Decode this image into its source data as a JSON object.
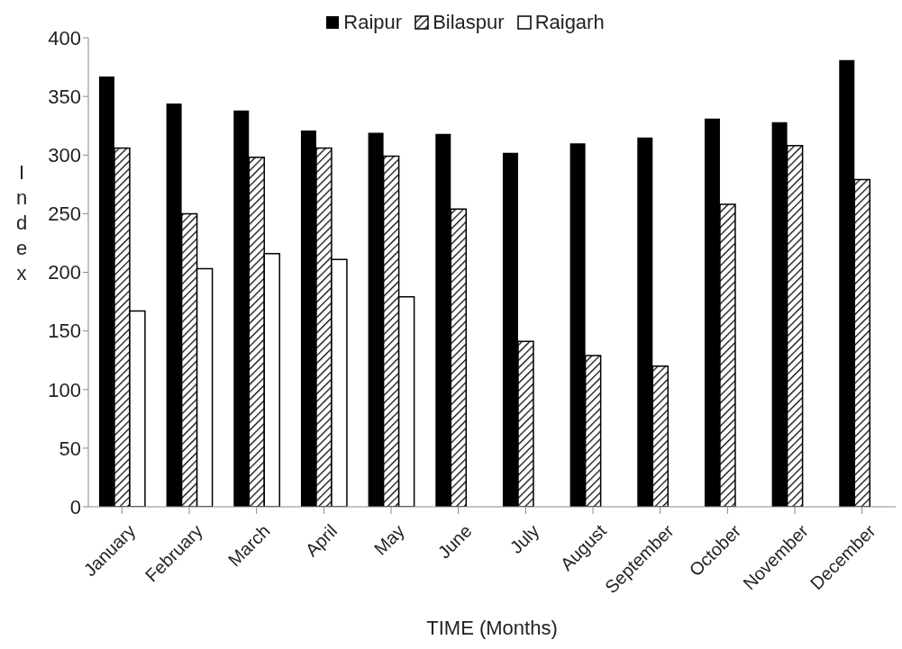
{
  "chart_data": {
    "type": "bar",
    "xlabel": "TIME (Months)",
    "ylabel": "Index",
    "categories": [
      "January",
      "February",
      "March",
      "April",
      "May",
      "June",
      "July",
      "August",
      "September",
      "October",
      "November",
      "December"
    ],
    "series": [
      {
        "name": "Raipur",
        "color": "#000000",
        "values": [
          367,
          344,
          338,
          321,
          319,
          318,
          302,
          310,
          315,
          331,
          328,
          381
        ]
      },
      {
        "name": "Bilaspur",
        "color": "#000000",
        "values": [
          306,
          250,
          298,
          306,
          299,
          254,
          141,
          129,
          120,
          258,
          308,
          279
        ]
      },
      {
        "name": "Raigarh",
        "color": "#ffffff",
        "values": [
          167,
          203,
          216,
          211,
          179,
          null,
          null,
          null,
          null,
          null,
          null,
          null
        ]
      }
    ],
    "ylim": [
      0,
      400
    ],
    "yticks": [
      0,
      50,
      100,
      150,
      200,
      250,
      300,
      350,
      400
    ],
    "grid": false,
    "legend": "top"
  }
}
